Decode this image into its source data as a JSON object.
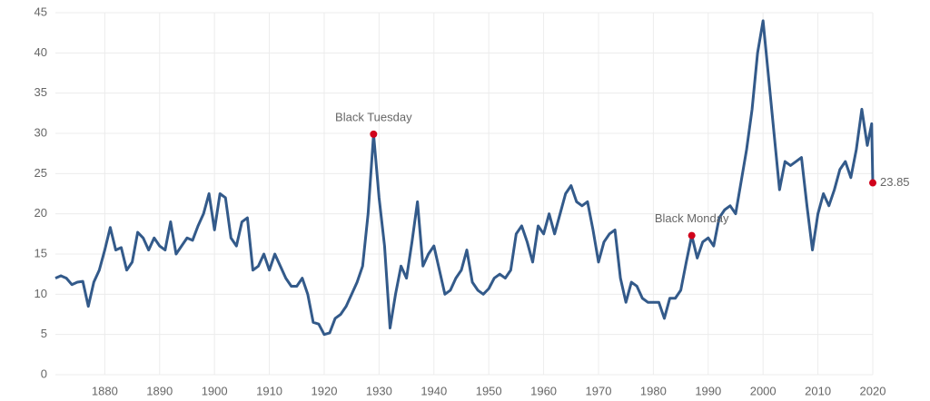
{
  "chart_data": {
    "type": "line",
    "x": [
      1871,
      1872,
      1873,
      1874,
      1875,
      1876,
      1877,
      1878,
      1879,
      1880,
      1881,
      1882,
      1883,
      1884,
      1885,
      1886,
      1887,
      1888,
      1889,
      1890,
      1891,
      1892,
      1893,
      1894,
      1895,
      1896,
      1897,
      1898,
      1899,
      1900,
      1901,
      1902,
      1903,
      1904,
      1905,
      1906,
      1907,
      1908,
      1909,
      1910,
      1911,
      1912,
      1913,
      1914,
      1915,
      1916,
      1917,
      1918,
      1919,
      1920,
      1921,
      1922,
      1923,
      1924,
      1925,
      1926,
      1927,
      1928,
      1929,
      1930,
      1931,
      1932,
      1933,
      1934,
      1935,
      1936,
      1937,
      1938,
      1939,
      1940,
      1941,
      1942,
      1943,
      1944,
      1945,
      1946,
      1947,
      1948,
      1949,
      1950,
      1951,
      1952,
      1953,
      1954,
      1955,
      1956,
      1957,
      1958,
      1959,
      1960,
      1961,
      1962,
      1963,
      1964,
      1965,
      1966,
      1967,
      1968,
      1969,
      1970,
      1971,
      1972,
      1973,
      1974,
      1975,
      1976,
      1977,
      1978,
      1979,
      1980,
      1981,
      1982,
      1983,
      1984,
      1985,
      1986,
      1987,
      1988,
      1989,
      1990,
      1991,
      1992,
      1993,
      1994,
      1995,
      1996,
      1997,
      1998,
      1999,
      2000,
      2001,
      2002,
      2003,
      2004,
      2005,
      2006,
      2007,
      2008,
      2009,
      2010,
      2011,
      2012,
      2013,
      2014,
      2015,
      2016,
      2017,
      2018,
      2019,
      2019.8,
      2020
    ],
    "series": [
      {
        "color": "#335a8a",
        "values": [
          12.0,
          12.3,
          12.0,
          11.2,
          11.5,
          11.6,
          8.5,
          11.5,
          13.0,
          15.5,
          18.3,
          15.5,
          15.8,
          13.0,
          14.0,
          17.7,
          17.0,
          15.5,
          17.0,
          16.0,
          15.5,
          19.0,
          15.0,
          16.0,
          17.0,
          16.7,
          18.5,
          20.0,
          22.5,
          18.0,
          22.5,
          22.0,
          17.0,
          16.0,
          19.0,
          19.5,
          13.0,
          13.5,
          15.0,
          13.0,
          15.0,
          13.5,
          12.0,
          11.0,
          11.0,
          12.0,
          10.0,
          6.5,
          6.3,
          5.0,
          5.2,
          7.0,
          7.5,
          8.5,
          10.0,
          11.5,
          13.5,
          20.0,
          29.9,
          22.0,
          16.0,
          5.8,
          10.0,
          13.5,
          12.0,
          16.5,
          21.5,
          13.5,
          15.0,
          16.0,
          13.0,
          10.0,
          10.5,
          12.0,
          13.0,
          15.5,
          11.5,
          10.5,
          10.0,
          10.7,
          12.0,
          12.5,
          12.0,
          13.0,
          17.5,
          18.5,
          16.5,
          14.0,
          18.5,
          17.5,
          20.0,
          17.5,
          20.0,
          22.5,
          23.5,
          21.5,
          21.0,
          21.5,
          18.0,
          14.0,
          16.5,
          17.5,
          18.0,
          12.0,
          9.0,
          11.5,
          11.0,
          9.5,
          9.0,
          9.0,
          9.0,
          7.0,
          9.5,
          9.5,
          10.5,
          14.0,
          17.3,
          14.5,
          16.5,
          17.0,
          16.0,
          19.5,
          20.5,
          21.0,
          20.0,
          24.0,
          28.0,
          33.0,
          40.0,
          44.0,
          37.0,
          30.0,
          23.0,
          26.5,
          26.0,
          26.5,
          27.0,
          21.0,
          15.5,
          20.0,
          22.5,
          21.0,
          23.0,
          25.5,
          26.5,
          24.5,
          28.0,
          33.0,
          28.5,
          31.2,
          23.85
        ]
      }
    ],
    "annotations": [
      {
        "text": "Black Tuesday",
        "x": 1929,
        "y": 29.9
      },
      {
        "text": "Black Monday",
        "x": 1987,
        "y": 17.3
      },
      {
        "x": 2020,
        "y": 23.85
      }
    ],
    "marker_color": "#d0021b",
    "xlim": [
      1871,
      2020
    ],
    "ylim": [
      0,
      45
    ],
    "xticks": [
      1880,
      1890,
      1900,
      1910,
      1920,
      1930,
      1940,
      1950,
      1960,
      1970,
      1980,
      1990,
      2000,
      2010,
      2020
    ],
    "yticks": [
      0,
      5,
      10,
      15,
      20,
      25,
      30,
      35,
      40,
      45
    ],
    "grid": true
  }
}
